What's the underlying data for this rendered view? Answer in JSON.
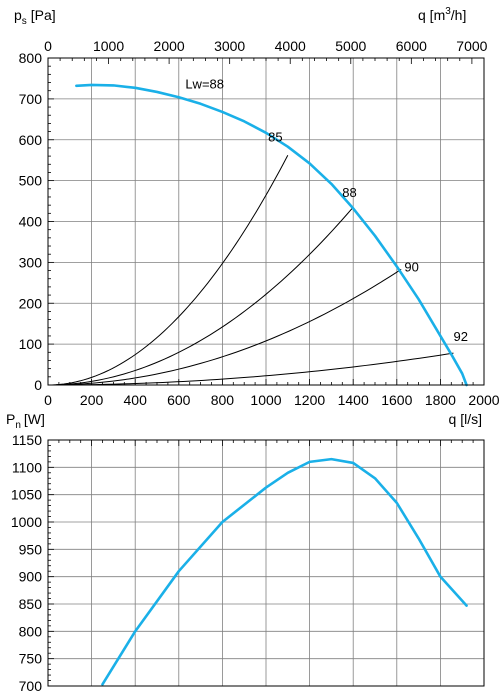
{
  "chart_data": [
    {
      "type": "line",
      "ylabel": "p",
      "ylabel_sub": "s",
      "ylabel_unit": "[Pa]",
      "xlabel": "q [l/s]",
      "x2label": "q [m",
      "x2label_sup": "3",
      "x2label_tail": "/h]",
      "xlim": [
        0,
        2000
      ],
      "ylim": [
        0,
        800
      ],
      "x_ticks": [
        0,
        200,
        400,
        600,
        800,
        1000,
        1200,
        1400,
        1600,
        1800,
        2000
      ],
      "y_ticks": [
        0,
        100,
        200,
        300,
        400,
        500,
        600,
        700,
        800
      ],
      "x2_ticks": [
        0,
        1000,
        2000,
        3000,
        4000,
        5000,
        6000,
        7000
      ],
      "grid": true,
      "fan_curve": {
        "color": "#1ab0e8",
        "x": [
          130,
          200,
          300,
          400,
          500,
          600,
          700,
          800,
          900,
          1000,
          1100,
          1200,
          1300,
          1400,
          1500,
          1600,
          1700,
          1800,
          1850,
          1900,
          1920
        ],
        "y": [
          732,
          734,
          733,
          727,
          717,
          704,
          688,
          668,
          645,
          617,
          583,
          542,
          492,
          432,
          365,
          290,
          210,
          120,
          75,
          28,
          0
        ]
      },
      "system_curves": [
        {
          "x": [
            0,
            1100
          ],
          "y": [
            0,
            562
          ],
          "label": "85"
        },
        {
          "x": [
            0,
            1395
          ],
          "y": [
            0,
            432
          ],
          "label": "88"
        },
        {
          "x": [
            0,
            1620
          ],
          "y": [
            0,
            283
          ],
          "label": "90"
        },
        {
          "x": [
            0,
            1860
          ],
          "y": [
            0,
            78
          ],
          "label": "92"
        }
      ],
      "annotations": [
        {
          "text": "Lw=88",
          "x": 630,
          "y": 735
        },
        {
          "text": "85",
          "x": 1010,
          "y": 605
        },
        {
          "text": "88",
          "x": 1350,
          "y": 470
        },
        {
          "text": "90",
          "x": 1635,
          "y": 288
        },
        {
          "text": "92",
          "x": 1860,
          "y": 118
        }
      ]
    },
    {
      "type": "line",
      "ylabel": "P",
      "ylabel_sub": "n",
      "ylabel_unit": "[W]",
      "xlim": [
        0,
        2000
      ],
      "ylim": [
        700,
        1150
      ],
      "y_ticks": [
        700,
        750,
        800,
        850,
        900,
        950,
        1000,
        1050,
        1100,
        1150
      ],
      "grid": true,
      "power_curve": {
        "color": "#1ab0e8",
        "x": [
          250,
          400,
          600,
          800,
          1000,
          1100,
          1200,
          1300,
          1400,
          1500,
          1600,
          1700,
          1800,
          1920
        ],
        "y": [
          703,
          800,
          910,
          1000,
          1063,
          1090,
          1110,
          1115,
          1108,
          1080,
          1035,
          970,
          900,
          847
        ]
      }
    }
  ]
}
